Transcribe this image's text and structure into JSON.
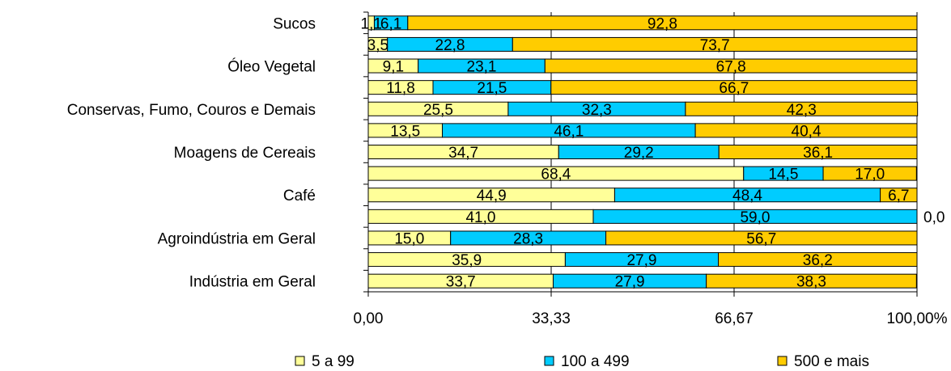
{
  "chart_data": {
    "type": "bar",
    "orientation": "horizontal",
    "stacked": "percent",
    "category_labels": [
      "Sucos",
      "",
      "Óleo Vegetal",
      "",
      "Conservas, Fumo, Couros e Demais",
      "",
      "Moagens de Cereais",
      "",
      "Café",
      "",
      "Agroindústria em Geral",
      "",
      "Indústria em Geral"
    ],
    "series": [
      {
        "name": "5 a 99",
        "color": "#ffff99",
        "values": [
          1.1,
          3.5,
          9.1,
          11.8,
          25.5,
          13.5,
          34.7,
          68.4,
          44.9,
          41.0,
          15.0,
          35.9,
          33.7
        ],
        "labels": [
          "1,1",
          "3,5",
          "9,1",
          "11,8",
          "25,5",
          "13,5",
          "34,7",
          "68,4",
          "44,9",
          "41,0",
          "15,0",
          "35,9",
          "33,7"
        ]
      },
      {
        "name": "100 a 499",
        "color": "#00ccff",
        "values": [
          6.1,
          22.8,
          23.1,
          21.5,
          32.3,
          46.1,
          29.2,
          14.5,
          48.4,
          59.0,
          28.3,
          27.9,
          27.9
        ],
        "labels": [
          "6,1",
          "22,8",
          "23,1",
          "21,5",
          "32,3",
          "46,1",
          "29,2",
          "14,5",
          "48,4",
          "59,0",
          "28,3",
          "27,9",
          "27,9"
        ]
      },
      {
        "name": "500 e mais",
        "color": "#ffcc00",
        "values": [
          92.8,
          73.7,
          67.8,
          66.7,
          42.3,
          40.4,
          36.1,
          17.0,
          6.7,
          0.0,
          56.7,
          36.2,
          38.3
        ],
        "labels": [
          "92,8",
          "73,7",
          "67,8",
          "66,7",
          "42,3",
          "40,4",
          "36,1",
          "17,0",
          "6,7",
          "0,0",
          "56,7",
          "36,2",
          "38,3"
        ]
      }
    ],
    "xlim": [
      0,
      100
    ],
    "x_ticks": [
      "0,00",
      "33,33",
      "66,67",
      "100,00%"
    ],
    "legend_position": "bottom",
    "grid": "vertical"
  }
}
